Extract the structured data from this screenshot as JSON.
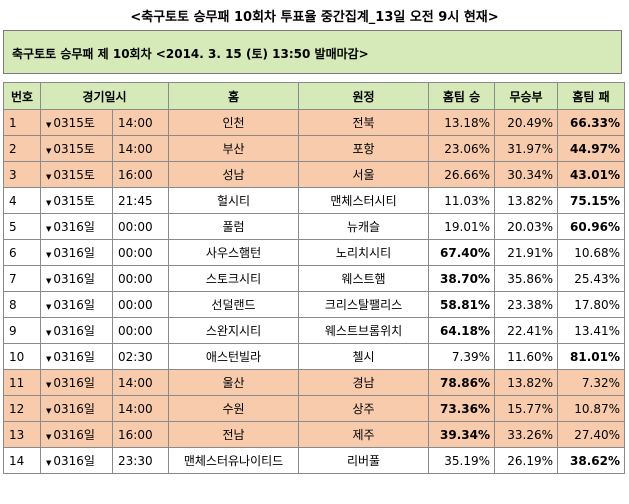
{
  "title": "<축구토토 승무패 10회차 투표율 중간집계_13일 오전 9시 현재>",
  "banner": "축구토토 승무패 제 10회차 <2014. 3. 15 (토) 13:50 발매마감>",
  "headers": [
    "번호",
    "경기일시",
    "홈",
    "원정",
    "홈팀 승",
    "무승부",
    "홈팀 패"
  ],
  "rows": [
    {
      "no": "1",
      "date": "0315토",
      "time": "14:00",
      "home": "인천",
      "away": "전북",
      "win": "13.18%",
      "draw": "20.49%",
      "lose": "66.33%",
      "max": "lose",
      "hl": true
    },
    {
      "no": "2",
      "date": "0315토",
      "time": "14:00",
      "home": "부산",
      "away": "포항",
      "win": "23.06%",
      "draw": "31.97%",
      "lose": "44.97%",
      "max": "lose",
      "hl": true
    },
    {
      "no": "3",
      "date": "0315토",
      "time": "16:00",
      "home": "성남",
      "away": "서울",
      "win": "26.66%",
      "draw": "30.34%",
      "lose": "43.01%",
      "max": "lose",
      "hl": true
    },
    {
      "no": "4",
      "date": "0315토",
      "time": "21:45",
      "home": "헐시티",
      "away": "맨체스터시티",
      "win": "11.03%",
      "draw": "13.82%",
      "lose": "75.15%",
      "max": "lose",
      "hl": false
    },
    {
      "no": "5",
      "date": "0316일",
      "time": "00:00",
      "home": "풀럼",
      "away": "뉴캐슬",
      "win": "19.01%",
      "draw": "20.03%",
      "lose": "60.96%",
      "max": "lose",
      "hl": false
    },
    {
      "no": "6",
      "date": "0316일",
      "time": "00:00",
      "home": "사우스햄턴",
      "away": "노리치시티",
      "win": "67.40%",
      "draw": "21.91%",
      "lose": "10.68%",
      "max": "win",
      "hl": false
    },
    {
      "no": "7",
      "date": "0316일",
      "time": "00:00",
      "home": "스토크시티",
      "away": "웨스트햄",
      "win": "38.70%",
      "draw": "35.86%",
      "lose": "25.43%",
      "max": "win",
      "hl": false
    },
    {
      "no": "8",
      "date": "0316일",
      "time": "00:00",
      "home": "선덜랜드",
      "away": "크리스탈팰리스",
      "win": "58.81%",
      "draw": "23.38%",
      "lose": "17.80%",
      "max": "win",
      "hl": false
    },
    {
      "no": "9",
      "date": "0316일",
      "time": "00:00",
      "home": "스완지시티",
      "away": "웨스트브롬위치",
      "win": "64.18%",
      "draw": "22.41%",
      "lose": "13.41%",
      "max": "win",
      "hl": false
    },
    {
      "no": "10",
      "date": "0316일",
      "time": "02:30",
      "home": "애스턴빌라",
      "away": "첼시",
      "win": "7.39%",
      "draw": "11.60%",
      "lose": "81.01%",
      "max": "lose",
      "hl": false
    },
    {
      "no": "11",
      "date": "0316일",
      "time": "14:00",
      "home": "울산",
      "away": "경남",
      "win": "78.86%",
      "draw": "13.82%",
      "lose": "7.32%",
      "max": "win",
      "hl": true
    },
    {
      "no": "12",
      "date": "0316일",
      "time": "14:00",
      "home": "수원",
      "away": "상주",
      "win": "73.36%",
      "draw": "15.77%",
      "lose": "10.87%",
      "max": "win",
      "hl": true
    },
    {
      "no": "13",
      "date": "0316일",
      "time": "16:00",
      "home": "전남",
      "away": "제주",
      "win": "39.34%",
      "draw": "33.26%",
      "lose": "27.40%",
      "max": "win",
      "hl": true
    },
    {
      "no": "14",
      "date": "0316일",
      "time": "23:30",
      "home": "맨체스터유나이티드",
      "away": "리버풀",
      "win": "35.19%",
      "draw": "26.19%",
      "lose": "38.62%",
      "max": "lose",
      "hl": false
    }
  ]
}
